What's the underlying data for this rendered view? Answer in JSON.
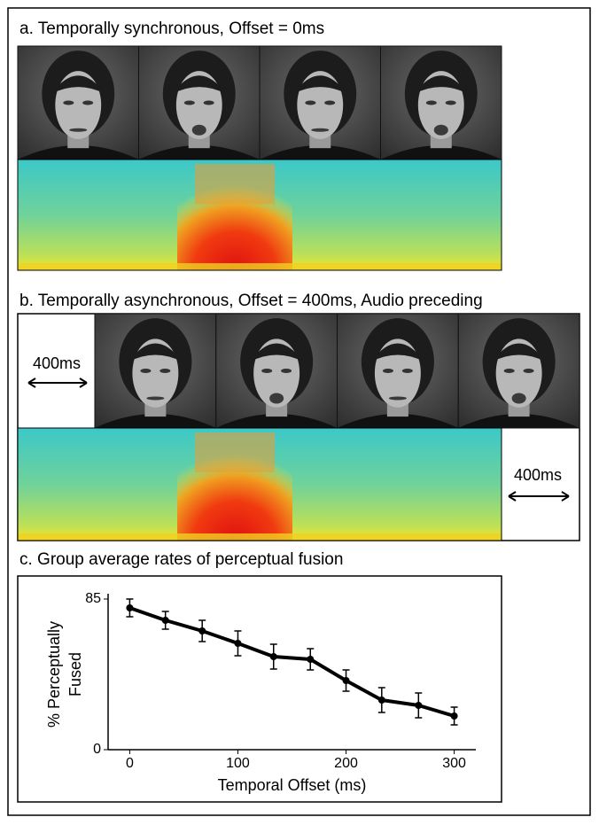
{
  "panels": [
    {
      "title": "a. Temporally synchronous, Offset = 0ms"
    },
    {
      "title": "b. Temporally asynchronous, Offset = 400ms, Audio preceding",
      "offset_labels": [
        "400ms",
        "400ms"
      ]
    },
    {
      "title": "c. Group average rates of perceptual fusion"
    }
  ],
  "chart_data": {
    "type": "line",
    "x_label": "Temporal Offset (ms)",
    "y_label": [
      "% Perceptually",
      "Fused"
    ],
    "x": [
      0,
      33,
      67,
      100,
      133,
      167,
      200,
      233,
      267,
      300
    ],
    "values": [
      80,
      73,
      67,
      60,
      52.5,
      51,
      39,
      28,
      25,
      19
    ],
    "errors": [
      5,
      5,
      6,
      7,
      7,
      6,
      6,
      7,
      7,
      5
    ],
    "color": "#000000",
    "xlim": [
      -20,
      320
    ],
    "ylim": [
      0,
      85
    ],
    "xticks": [
      0,
      100,
      200,
      300
    ],
    "yticks": [
      0,
      85
    ]
  }
}
